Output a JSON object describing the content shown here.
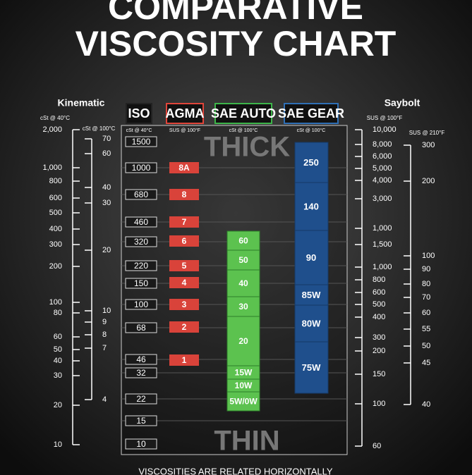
{
  "header": {
    "title_line1": "COMPARATIVE",
    "title_line2": "VISCOSITY CHART"
  },
  "kinematic": {
    "title": "Kinematic",
    "scale_40": {
      "unit": "cSt @ 40°C",
      "labels": [
        "2,000",
        "1,000",
        "800",
        "600",
        "500",
        "400",
        "300",
        "200",
        "100",
        "80",
        "60",
        "50",
        "40",
        "30",
        "20",
        "10"
      ]
    },
    "scale_100": {
      "unit": "cSt @ 100°C",
      "labels": [
        "70",
        "60",
        "40",
        "30",
        "20",
        "10",
        "9",
        "8",
        "7",
        "4"
      ]
    }
  },
  "saybolt": {
    "title": "Saybolt",
    "scale_100f": {
      "unit": "SUS @ 100°F",
      "labels": [
        "10,000",
        "8,000",
        "6,000",
        "5,000",
        "4,000",
        "3,000",
        "1,000",
        "1,500",
        "1,000",
        "800",
        "600",
        "500",
        "400",
        "300",
        "200",
        "150",
        "100",
        "60"
      ]
    },
    "scale_210f": {
      "unit": "SUS @ 210°F",
      "labels": [
        "300",
        "200",
        "100",
        "90",
        "80",
        "70",
        "60",
        "55",
        "50",
        "45",
        "40"
      ]
    }
  },
  "columns": {
    "iso": {
      "title": "ISO",
      "unit": "cSt @ 40°C",
      "grades": [
        "1500",
        "1000",
        "680",
        "460",
        "320",
        "220",
        "150",
        "100",
        "68",
        "46",
        "32",
        "22",
        "15",
        "10"
      ]
    },
    "agma": {
      "title": "AGMA",
      "unit": "SUS @ 100°F",
      "grades": [
        "8A",
        "8",
        "7",
        "6",
        "5",
        "4",
        "3",
        "2",
        "1"
      ]
    },
    "sae_auto": {
      "title": "SAE AUTO",
      "unit": "cSt @ 100°C",
      "grades": [
        "60",
        "50",
        "40",
        "30",
        "20",
        "15W",
        "10W",
        "5W/0W"
      ]
    },
    "sae_gear": {
      "title": "SAE GEAR",
      "unit": "cSt @ 100°C",
      "grades": [
        "250",
        "140",
        "90",
        "85W",
        "80W",
        "75W"
      ]
    }
  },
  "labels": {
    "thick": "THICK",
    "thin": "THIN",
    "footer": "VISCOSITIES ARE RELATED HORIZONTALLY"
  }
}
